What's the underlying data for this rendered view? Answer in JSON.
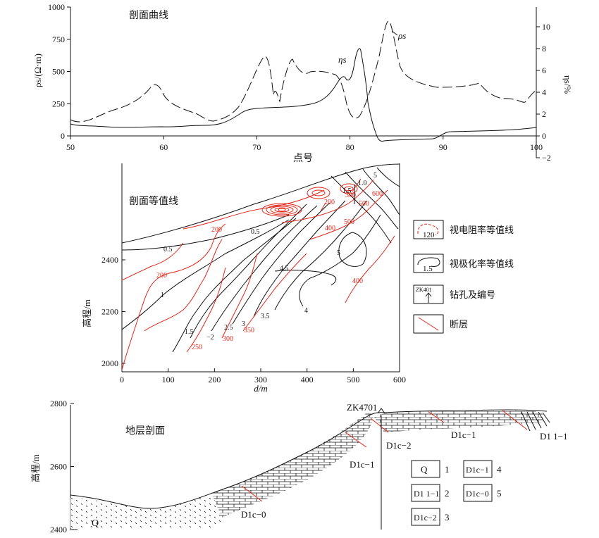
{
  "panel1": {
    "title": "剖面曲线",
    "xlabel": "点号",
    "ylabel_left": "ρs/(Ω·m)",
    "ylabel_right": "ηs/%",
    "x_ticks": [
      "50",
      "60",
      "70",
      "80",
      "90",
      "100"
    ],
    "y_left_ticks": [
      "0",
      "250",
      "500",
      "750",
      "1000"
    ],
    "y_right_ticks": [
      "−2",
      "0",
      "2",
      "4",
      "6",
      "8",
      "10"
    ],
    "curve_labels": {
      "rho": "ρs",
      "eta": "ηs"
    }
  },
  "panel2": {
    "title": "剖面等值线",
    "xlabel": "d/m",
    "ylabel": "高程/m",
    "x_ticks": [
      "0",
      "100",
      "200",
      "300",
      "400",
      "500",
      "600"
    ],
    "y_ticks": [
      "2000",
      "2200",
      "2400"
    ],
    "black_labels": [
      "0.5",
      "0.5",
      "1",
      "1.0",
      "1.5",
      "1.5",
      "−2",
      "2.5",
      "3",
      "3.5",
      "4",
      "4.5",
      "5",
      "5"
    ],
    "red_labels": [
      "200",
      "200",
      "250",
      "300",
      "350",
      "400",
      "400",
      "500",
      "500",
      "600",
      "200",
      "300"
    ]
  },
  "legend": {
    "items": [
      {
        "sample": "120",
        "label": "视电阻率等值线"
      },
      {
        "sample": "1.5",
        "label": "视极化率等值线"
      },
      {
        "sample": "ZK401",
        "label": "钻孔及编号"
      },
      {
        "sample": "",
        "label": "断层"
      }
    ]
  },
  "panel3": {
    "title": "地层剖面",
    "ylabel": "高程/m",
    "y_ticks": [
      "2400",
      "2600",
      "2800"
    ],
    "borehole": "ZK4701",
    "strata": [
      "Q",
      "D1c−0",
      "D1c−1",
      "D1c−2",
      "D1c−1",
      "D1 1−1"
    ],
    "legend": [
      {
        "sym": "Q",
        "num": "1"
      },
      {
        "sym": "D1 1−1",
        "num": "2"
      },
      {
        "sym": "D1c−2",
        "num": "3"
      },
      {
        "sym": "D1c−1",
        "num": "4"
      },
      {
        "sym": "D1c−0",
        "num": "5"
      }
    ]
  }
}
